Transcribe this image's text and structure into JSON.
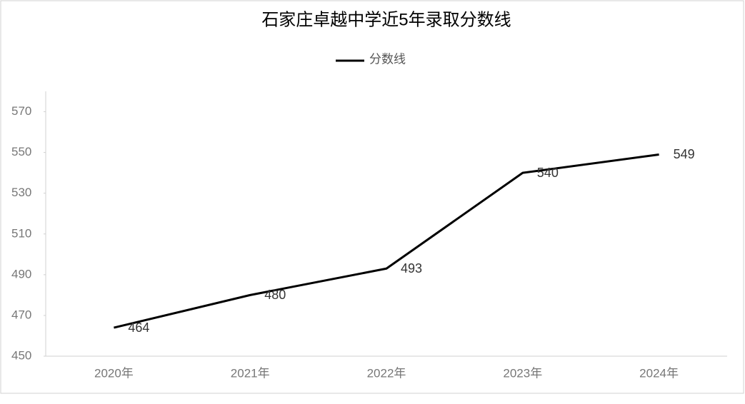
{
  "chart_data": {
    "type": "line",
    "title": "石家庄卓越中学近5年录取分数线",
    "categories": [
      "2020年",
      "2021年",
      "2022年",
      "2023年",
      "2024年"
    ],
    "series": [
      {
        "name": "分数线",
        "color": "#000000",
        "values": [
          464,
          480,
          493,
          540,
          549
        ]
      }
    ],
    "ylim": [
      450,
      580
    ],
    "yticks": [
      450,
      470,
      490,
      510,
      530,
      550,
      570
    ],
    "grid": false
  }
}
